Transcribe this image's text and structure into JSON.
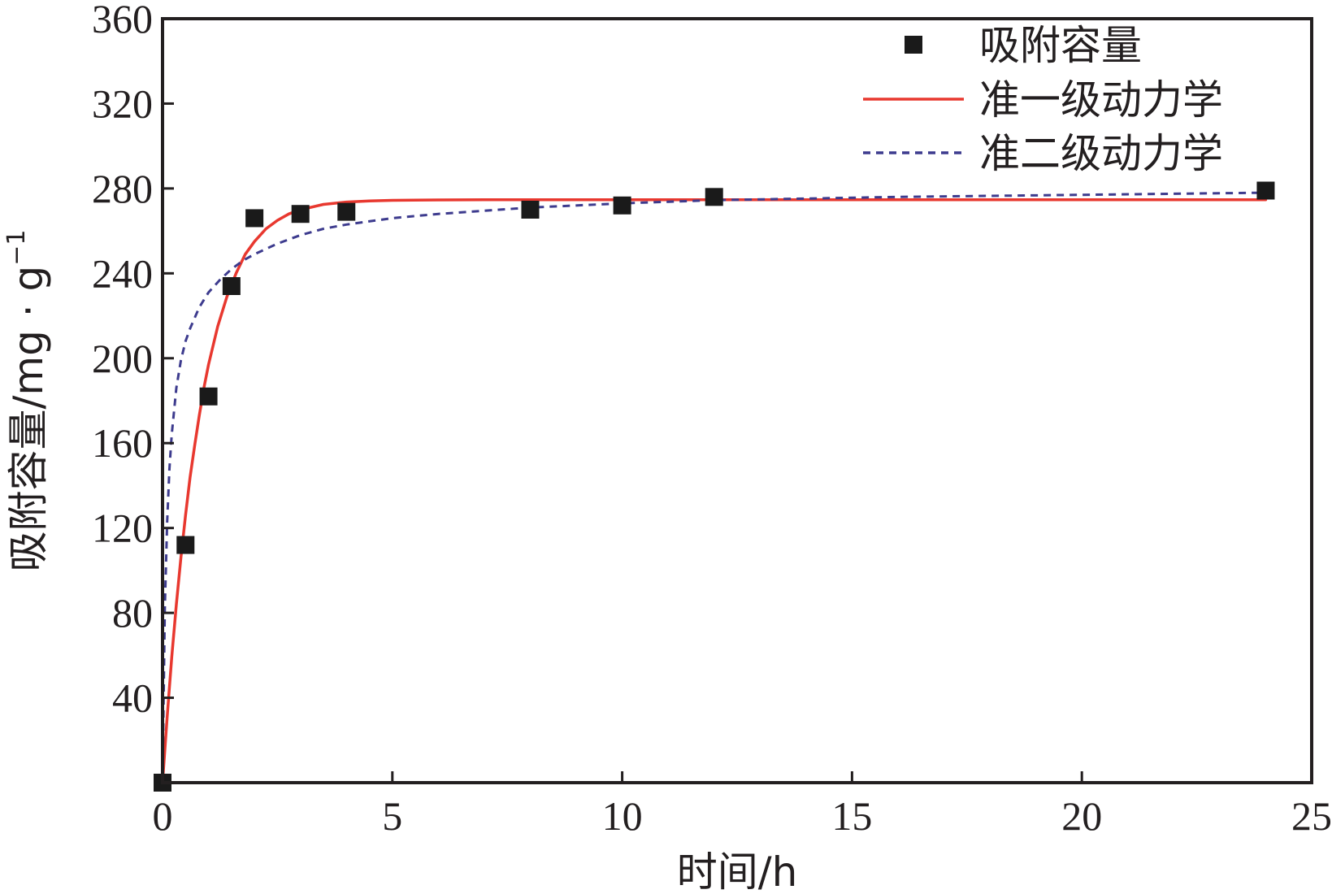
{
  "chart_data": {
    "type": "scatter",
    "title": "",
    "xlabel": "时间/h",
    "ylabel": "吸附容量/mg · g",
    "ylabel_superscript": "−1",
    "xlim": [
      0,
      25
    ],
    "ylim": [
      0,
      360
    ],
    "x_ticks": [
      "0",
      "5",
      "10",
      "15",
      "20",
      "25"
    ],
    "y_ticks": [
      "40",
      "80",
      "120",
      "160",
      "200",
      "240",
      "280",
      "320",
      "360"
    ],
    "legend_position": "top-right",
    "series": [
      {
        "name": "吸附容量",
        "kind": "markers",
        "color": "#1a1a1a",
        "marker": "square",
        "x": [
          0,
          0.5,
          1,
          1.5,
          2,
          3,
          4,
          8,
          10,
          12,
          24
        ],
        "y": [
          0,
          112,
          182,
          234,
          266,
          268,
          269,
          270,
          272,
          276,
          279
        ]
      },
      {
        "name": "准一级动力学",
        "kind": "line",
        "color": "#e8382f",
        "dash": "solid",
        "x": [
          0,
          0.1,
          0.2,
          0.3,
          0.4,
          0.5,
          0.6,
          0.7,
          0.8,
          0.9,
          1,
          1.2,
          1.4,
          1.6,
          1.8,
          2,
          2.25,
          2.5,
          2.75,
          3,
          3.5,
          4,
          4.5,
          5,
          6,
          7,
          8,
          10,
          12,
          16,
          20,
          24
        ],
        "y": [
          0,
          31,
          59,
          84,
          106,
          126,
          144,
          159,
          173,
          186,
          197,
          215,
          229,
          240,
          249,
          255,
          261,
          265,
          268,
          270,
          272.5,
          273.6,
          274.1,
          274.4,
          274.6,
          274.7,
          274.7,
          274.7,
          274.7,
          274.7,
          274.7,
          274.7
        ]
      },
      {
        "name": "准二级动力学",
        "kind": "line",
        "color": "#3d3b8e",
        "dash": "dashed",
        "x": [
          0,
          0.05,
          0.1,
          0.15,
          0.2,
          0.3,
          0.4,
          0.5,
          0.6,
          0.8,
          1,
          1.25,
          1.5,
          1.75,
          2,
          2.5,
          3,
          3.5,
          4,
          5,
          6,
          8,
          10,
          12,
          16,
          20,
          24
        ],
        "y": [
          0,
          82,
          123,
          148,
          164,
          186,
          199,
          208,
          214,
          224,
          231,
          237,
          242,
          246,
          249,
          254,
          258,
          261,
          263,
          266,
          268,
          271,
          273,
          274.5,
          276,
          277,
          278
        ]
      }
    ]
  }
}
